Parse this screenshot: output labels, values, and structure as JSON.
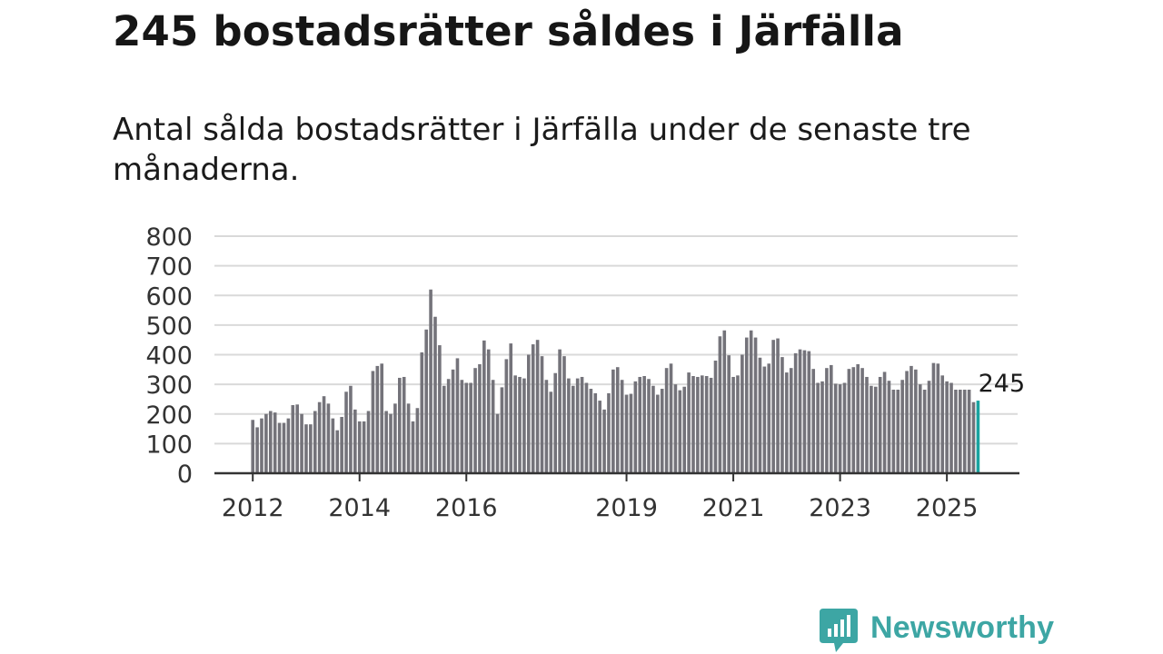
{
  "title": "245 bostadsrätter såldes i Järfälla",
  "subtitle": "Antal sålda bostadsrätter i Järfälla under de senaste tre månaderna.",
  "brand": {
    "name": "Newsworthy",
    "color": "#3da6a4",
    "icon": "chart-bubble-icon"
  },
  "chart_data": {
    "type": "bar",
    "title": "",
    "xlabel": "",
    "ylabel": "",
    "ylim": [
      0,
      800
    ],
    "y_ticks": [
      0,
      100,
      200,
      300,
      400,
      500,
      600,
      700,
      800
    ],
    "x_tick_labels": [
      {
        "label": "2012",
        "at": "2012-01"
      },
      {
        "label": "2014",
        "at": "2014-01"
      },
      {
        "label": "2016",
        "at": "2016-01"
      },
      {
        "label": "2019",
        "at": "2019-01"
      },
      {
        "label": "2021",
        "at": "2021-01"
      },
      {
        "label": "2023",
        "at": "2023-01"
      },
      {
        "label": "2025",
        "at": "2025-01"
      }
    ],
    "grid": true,
    "bar_color": "#74737a",
    "highlight_color": "#1aa3a0",
    "highlight_label": "245",
    "start_month": "2012-01",
    "values": [
      180,
      155,
      185,
      200,
      210,
      205,
      170,
      170,
      185,
      230,
      232,
      200,
      165,
      165,
      210,
      240,
      260,
      235,
      185,
      145,
      190,
      275,
      295,
      215,
      175,
      175,
      210,
      345,
      362,
      370,
      210,
      200,
      235,
      322,
      325,
      235,
      175,
      220,
      408,
      485,
      620,
      528,
      432,
      295,
      318,
      350,
      388,
      315,
      305,
      305,
      355,
      368,
      448,
      418,
      315,
      200,
      290,
      385,
      438,
      330,
      325,
      320,
      400,
      435,
      450,
      395,
      315,
      275,
      338,
      418,
      395,
      320,
      295,
      320,
      325,
      305,
      285,
      270,
      245,
      215,
      270,
      350,
      358,
      315,
      265,
      268,
      310,
      325,
      328,
      318,
      295,
      265,
      285,
      355,
      370,
      300,
      280,
      292,
      340,
      328,
      325,
      330,
      328,
      322,
      380,
      462,
      482,
      398,
      325,
      330,
      400,
      458,
      482,
      458,
      390,
      360,
      370,
      450,
      455,
      392,
      340,
      355,
      405,
      418,
      415,
      412,
      352,
      305,
      310,
      355,
      365,
      302,
      300,
      305,
      352,
      358,
      368,
      355,
      325,
      295,
      292,
      325,
      342,
      312,
      282,
      282,
      315,
      345,
      362,
      350,
      300,
      282,
      312,
      372,
      370,
      330,
      310,
      305,
      282,
      282,
      282,
      282,
      240,
      245
    ]
  }
}
